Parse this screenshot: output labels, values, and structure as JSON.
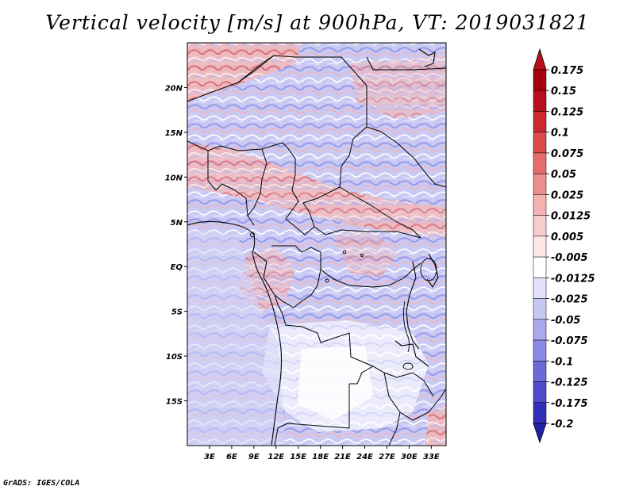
{
  "title": "Vertical velocity [m/s] at 900hPa, VT: 2019031821",
  "credit": "GrADS: IGES/COLA",
  "map": {
    "lon_range": [
      0,
      35
    ],
    "lat_range": [
      -20,
      25
    ],
    "lat_labels": [
      {
        "lat": 20,
        "label": "20N"
      },
      {
        "lat": 15,
        "label": "15N"
      },
      {
        "lat": 10,
        "label": "10N"
      },
      {
        "lat": 5,
        "label": "5N"
      },
      {
        "lat": 0,
        "label": "EQ"
      },
      {
        "lat": -5,
        "label": "5S"
      },
      {
        "lat": -10,
        "label": "10S"
      },
      {
        "lat": -15,
        "label": "15S"
      }
    ],
    "lon_labels": [
      {
        "lon": 3,
        "label": "3E"
      },
      {
        "lon": 6,
        "label": "6E"
      },
      {
        "lon": 9,
        "label": "9E"
      },
      {
        "lon": 12,
        "label": "12E"
      },
      {
        "lon": 15,
        "label": "15E"
      },
      {
        "lon": 18,
        "label": "18E"
      },
      {
        "lon": 21,
        "label": "21E"
      },
      {
        "lon": 24,
        "label": "24E"
      },
      {
        "lon": 27,
        "label": "27E"
      },
      {
        "lon": 30,
        "label": "30E"
      },
      {
        "lon": 33,
        "label": "33E"
      }
    ]
  },
  "colorbar": {
    "levels": [
      {
        "label": "0.175",
        "color": "#a3000a"
      },
      {
        "label": "0.15",
        "color": "#b8101a"
      },
      {
        "label": "0.125",
        "color": "#cc2830"
      },
      {
        "label": "0.1",
        "color": "#dc4a4c"
      },
      {
        "label": "0.075",
        "color": "#e76c6c"
      },
      {
        "label": "0.05",
        "color": "#ef8e8e"
      },
      {
        "label": "0.025",
        "color": "#f5b1b1"
      },
      {
        "label": "0.0125",
        "color": "#f9cccc"
      },
      {
        "label": "0.005",
        "color": "#fce6e6"
      },
      {
        "label": "-0.005",
        "color": "#ffffff"
      },
      {
        "label": "-0.0125",
        "color": "#e2e2fb"
      },
      {
        "label": "-0.025",
        "color": "#c7c7f5"
      },
      {
        "label": "-0.05",
        "color": "#a9a9ee"
      },
      {
        "label": "-0.075",
        "color": "#8a8ae4"
      },
      {
        "label": "-0.1",
        "color": "#6a6ad8"
      },
      {
        "label": "-0.125",
        "color": "#4c4cca"
      },
      {
        "label": "-0.175",
        "color": "#3030b8"
      },
      {
        "label": "-0.2",
        "color": "#1c1ca2"
      }
    ],
    "top_cap_color": "#b8101a",
    "bottom_cap_color": "#2020a8"
  }
}
